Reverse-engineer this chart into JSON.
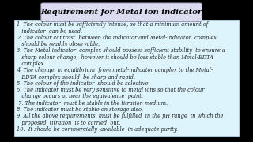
{
  "title": "Requirement for Metal ion indicator",
  "title_bg": "#dcdcf0",
  "title_border": "#9999bb",
  "body_bg": "#ddf4fc",
  "body_border": "#aaccdd",
  "outer_bg": "#000000",
  "title_color": "#000000",
  "body_text_color": "#222222",
  "lines": [
    "1  The colour must be sufficiently intense, so that a minimum amount of",
    "   indicator  can be used.",
    "2. The colour contrast  between the indicator and Metal-indicator  complex",
    "   should be readily observable.",
    "3. The Metal-indicator  complex should possess sufficient stability  to ensure a",
    "   sharp colour change,  however it should be less stable than Metal-EDTA",
    "   complex.",
    "4. The change  in equilibrium  from metal-indicator complex to the Metal-",
    "   EDTA complex should  be sharp and rapid.",
    "5. The colour of the indicator  should be selective.",
    "6. The indicator must be very sensitive to metal ions so that the colour",
    "   change occurs at near the equivalence  point.",
    " 7. The indicator  must be stable in the titration medium.",
    "8. The indicator must be stable on storage also.",
    "9. All the above requirements  must be fulfilled  in the pH range  in which the",
    "   proposed  titration  is to carried  out.",
    "10.  It should be commercially  available  in adequate purity."
  ],
  "font_size": 4.8,
  "title_font_size": 7.2
}
